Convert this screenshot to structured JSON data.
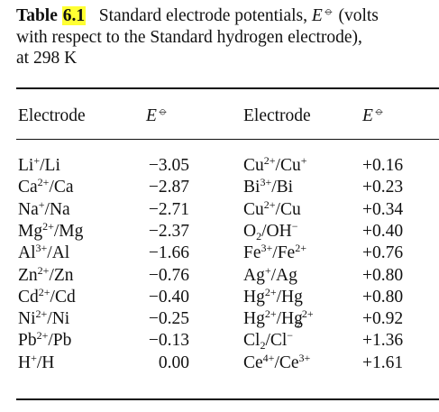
{
  "caption": {
    "label": "Table",
    "number": "6.1",
    "line1": "Standard electrode potentials, ",
    "symbol": "E",
    "line1_tail": " (volts",
    "line2": "with respect to the Standard hydrogen electrode),",
    "line3": "at 298 K"
  },
  "headers": {
    "electrode_left": "Electrode",
    "potential_left": "E",
    "electrode_right": "Electrode",
    "potential_right": "E"
  },
  "rows": [
    {
      "left": {
        "ion": "Li",
        "charge": "+",
        "el": "Li",
        "value": "−3.05"
      },
      "right": {
        "html": "Cu<sup>2+</sup>/Cu<sup>+</sup>",
        "text": "Cu2+/Cu+",
        "value": "+0.16"
      }
    },
    {
      "left": {
        "ion": "Ca",
        "charge": "2+",
        "el": "Ca",
        "value": "−2.87"
      },
      "right": {
        "html": "Bi<sup>3+</sup>/Bi",
        "text": "Bi3+/Bi",
        "value": "+0.23"
      }
    },
    {
      "left": {
        "ion": "Na",
        "charge": "+",
        "el": "Na",
        "value": "−2.71"
      },
      "right": {
        "html": "Cu<sup>2+</sup>/Cu",
        "text": "Cu2+/Cu",
        "value": "+0.34"
      }
    },
    {
      "left": {
        "ion": "Mg",
        "charge": "2+",
        "el": "Mg",
        "value": "−2.37"
      },
      "right": {
        "html": "O<sub>2</sub>/OH<sup>−</sup>",
        "text": "O2/OH−",
        "value": "+0.40"
      }
    },
    {
      "left": {
        "ion": "Al",
        "charge": "3+",
        "el": "Al",
        "value": "−1.66"
      },
      "right": {
        "html": "Fe<sup>3+</sup>/Fe<sup>2+</sup>",
        "text": "Fe3+/Fe2+",
        "value": "+0.76"
      }
    },
    {
      "left": {
        "ion": "Zn",
        "charge": "2+",
        "el": "Zn",
        "value": "−0.76"
      },
      "right": {
        "html": "Ag<sup>+</sup>/Ag",
        "text": "Ag+/Ag",
        "value": "+0.80"
      }
    },
    {
      "left": {
        "ion": "Cd",
        "charge": "2+",
        "el": "Cd",
        "value": "−0.40"
      },
      "right": {
        "html": "Hg<sup>2+</sup>/Hg",
        "text": "Hg2+/Hg",
        "value": "+0.80"
      }
    },
    {
      "left": {
        "ion": "Ni",
        "charge": "2+",
        "el": "Ni",
        "value": "−0.25"
      },
      "right": {
        "html": "Hg<sup>2+</sup>/Hg<sub style=\"margin-left:-7px\">2</sub><sup>2+</sup>",
        "text": "Hg2+/Hg22+",
        "value": "+0.92"
      }
    },
    {
      "left": {
        "ion": "Pb",
        "charge": "2+",
        "el": "Pb",
        "value": "−0.13"
      },
      "right": {
        "html": "Cl<sub>2</sub>/Cl<sup>−</sup>",
        "text": "Cl2/Cl−",
        "value": "+1.36"
      }
    },
    {
      "left": {
        "ion": "H",
        "charge": "+",
        "el": "H",
        "value": "0.00"
      },
      "right": {
        "html": "Ce<sup>4+</sup>/Ce<sup>3+</sup>",
        "text": "Ce4+/Ce3+",
        "value": "+1.61"
      }
    }
  ]
}
